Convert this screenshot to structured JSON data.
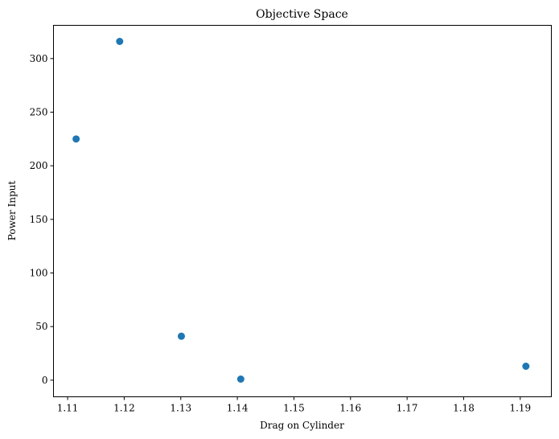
{
  "chart_data": {
    "type": "scatter",
    "title": "Objective Space",
    "xlabel": "Drag on Cylinder",
    "ylabel": "Power Input",
    "xlim": [
      1.1075,
      1.1955
    ],
    "ylim": [
      -15.5,
      331
    ],
    "xticks": [
      1.11,
      1.12,
      1.13,
      1.14,
      1.15,
      1.16,
      1.17,
      1.18,
      1.19
    ],
    "xtick_labels": [
      "1.11",
      "1.12",
      "1.13",
      "1.14",
      "1.15",
      "1.16",
      "1.17",
      "1.18",
      "1.19"
    ],
    "yticks": [
      0,
      50,
      100,
      150,
      200,
      250,
      300
    ],
    "ytick_labels": [
      "0",
      "50",
      "100",
      "150",
      "200",
      "250",
      "300"
    ],
    "grid": false,
    "legend": "none",
    "marker_color": "#1f77b4",
    "points": [
      {
        "x": 1.1115,
        "y": 225
      },
      {
        "x": 1.1192,
        "y": 316
      },
      {
        "x": 1.1301,
        "y": 41
      },
      {
        "x": 1.1406,
        "y": 1
      },
      {
        "x": 1.191,
        "y": 13
      }
    ]
  }
}
